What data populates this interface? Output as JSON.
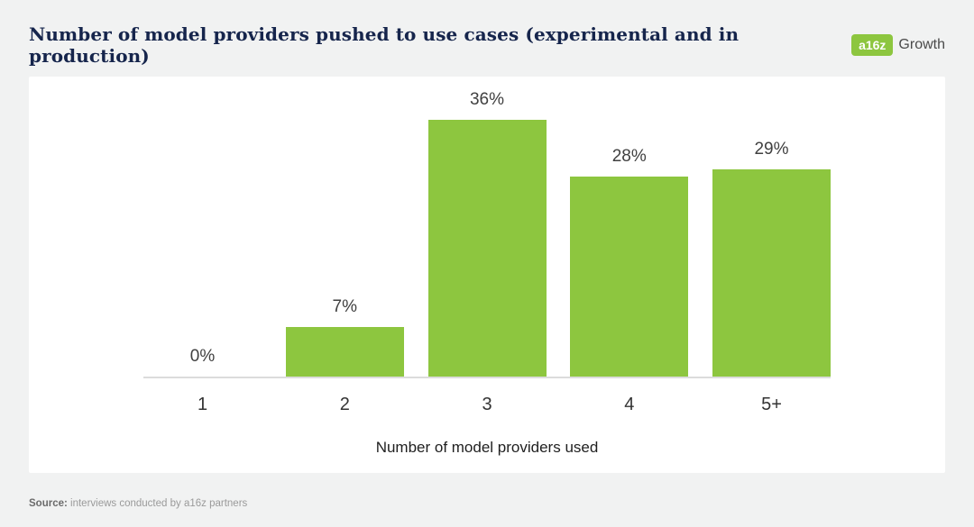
{
  "header": {
    "title": "Number of model providers pushed to use cases (experimental and in production)",
    "logo": {
      "badge": "a16z",
      "suffix": "Growth"
    }
  },
  "chart_data": {
    "type": "bar",
    "title": "Number of model providers pushed to use cases (experimental and in production)",
    "categories": [
      "1",
      "2",
      "3",
      "4",
      "5+"
    ],
    "values": [
      0,
      7,
      36,
      28,
      29
    ],
    "value_labels": [
      "0%",
      "7%",
      "36%",
      "28%",
      "29%"
    ],
    "xlabel": "Number of model providers used",
    "ylabel": "",
    "ylim": [
      0,
      40
    ],
    "bar_color": "#8dc63f",
    "grid": false,
    "legend": "none"
  },
  "colors": {
    "accent_green": "#8dc63f",
    "title_navy": "#16254c",
    "card_bg": "#ffffff",
    "page_bg": "#f1f2f2"
  },
  "footer": {
    "source_label": "Source:",
    "source_text": " interviews conducted by a16z partners"
  }
}
